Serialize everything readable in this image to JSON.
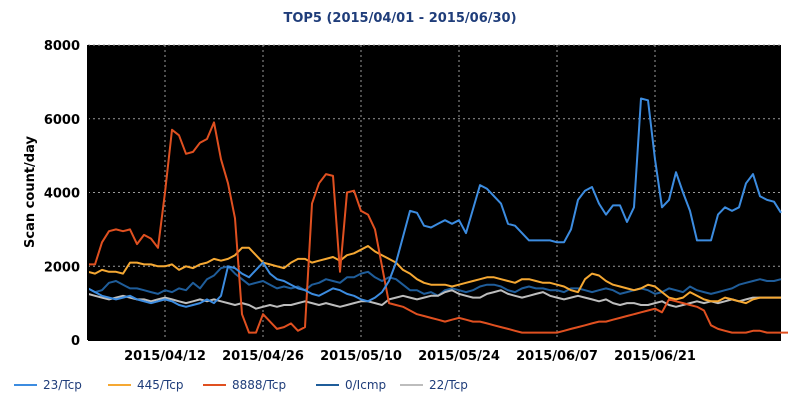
{
  "chart_data": {
    "type": "line",
    "title": "TOP5 (2015/04/01 - 2015/06/30)",
    "xlabel": "",
    "ylabel": "Scan count/day",
    "ylim": [
      0,
      8000
    ],
    "yticks": [
      "0",
      "2000",
      "4000",
      "6000",
      "8000"
    ],
    "xticks": [
      "2015/04/12",
      "2015/04/26",
      "2015/05/10",
      "2015/05/24",
      "2015/06/07",
      "2015/06/21"
    ],
    "x_start": "2015/04/01",
    "x_end": "2015/06/30",
    "background": "#000000",
    "grid": true,
    "legend_position": "bottom",
    "series": [
      {
        "name": "23/Tcp",
        "color": "#3c8ce0",
        "values": [
          1400,
          1300,
          1200,
          1150,
          1100,
          1150,
          1200,
          1100,
          1050,
          1000,
          1050,
          1100,
          1050,
          950,
          900,
          950,
          1000,
          1100,
          1000,
          1200,
          2000,
          1950,
          1800,
          1700,
          1900,
          2100,
          1800,
          1650,
          1600,
          1500,
          1400,
          1350,
          1250,
          1200,
          1300,
          1400,
          1350,
          1250,
          1200,
          1100,
          1050,
          1150,
          1300,
          1600,
          2100,
          2800,
          3500,
          3450,
          3100,
          3050,
          3150,
          3250,
          3150,
          3250,
          2900,
          3550,
          4200,
          4100,
          3900,
          3700,
          3150,
          3100,
          2900,
          2700,
          2700,
          2700,
          2700,
          2650,
          2650,
          3000,
          3800,
          4050,
          4150,
          3700,
          3400,
          3650,
          3650,
          3200,
          3600,
          6550,
          6500,
          4900,
          3600,
          3800,
          4550,
          4000,
          3500,
          2700,
          2700,
          2700,
          3400,
          3600,
          3500,
          3600,
          4250,
          4500,
          3900,
          3800,
          3750,
          3450
        ]
      },
      {
        "name": "445/Tcp",
        "color": "#f5a833",
        "values": [
          1850,
          1800,
          1900,
          1850,
          1850,
          1800,
          2100,
          2100,
          2050,
          2050,
          2000,
          2000,
          2050,
          1900,
          2000,
          1950,
          2050,
          2100,
          2200,
          2150,
          2200,
          2300,
          2500,
          2500,
          2300,
          2100,
          2050,
          2000,
          1950,
          2100,
          2200,
          2200,
          2100,
          2150,
          2200,
          2250,
          2150,
          2300,
          2350,
          2450,
          2550,
          2400,
          2300,
          2200,
          2100,
          1900,
          1800,
          1650,
          1550,
          1500,
          1500,
          1500,
          1450,
          1500,
          1550,
          1600,
          1650,
          1700,
          1700,
          1650,
          1600,
          1550,
          1650,
          1650,
          1600,
          1550,
          1550,
          1500,
          1450,
          1350,
          1300,
          1650,
          1800,
          1750,
          1600,
          1500,
          1450,
          1400,
          1350,
          1400,
          1500,
          1450,
          1300,
          1150,
          1100,
          1150,
          1300,
          1200,
          1100,
          1050,
          1050,
          1150,
          1100,
          1050,
          1000,
          1100,
          1150,
          1150,
          1150,
          1150
        ]
      },
      {
        "name": "8888/Tcp",
        "color": "#e05020",
        "values": [
          2050,
          2050,
          2650,
          2950,
          3000,
          2950,
          3000,
          2600,
          2850,
          2750,
          2500,
          4000,
          5700,
          5550,
          5050,
          5100,
          5350,
          5450,
          5900,
          4900,
          4250,
          3300,
          700,
          200,
          200,
          700,
          500,
          300,
          350,
          450,
          250,
          350,
          3700,
          4250,
          4500,
          4450,
          1850,
          4000,
          4050,
          3500,
          3400,
          3000,
          2000,
          1000,
          950,
          900,
          800,
          700,
          650,
          600,
          550,
          500,
          550,
          600,
          550,
          500,
          500,
          450,
          400,
          350,
          300,
          250,
          200,
          200,
          200,
          200,
          200,
          200,
          250,
          300,
          350,
          400,
          450,
          500,
          500,
          550,
          600,
          650,
          700,
          750,
          800,
          850,
          750,
          1100,
          1050,
          1000,
          950,
          900,
          800,
          400,
          300,
          250,
          200,
          200,
          200,
          250,
          250,
          200,
          200,
          200,
          200
        ]
      },
      {
        "name": "0/Icmp",
        "color": "#1f5d9a",
        "values": [
          1400,
          1300,
          1350,
          1550,
          1600,
          1500,
          1400,
          1400,
          1350,
          1300,
          1250,
          1350,
          1300,
          1400,
          1350,
          1550,
          1400,
          1650,
          1750,
          1950,
          2000,
          1800,
          1650,
          1500,
          1550,
          1600,
          1500,
          1400,
          1450,
          1400,
          1450,
          1350,
          1500,
          1550,
          1650,
          1600,
          1550,
          1700,
          1700,
          1800,
          1850,
          1700,
          1600,
          1700,
          1650,
          1500,
          1350,
          1350,
          1250,
          1300,
          1200,
          1350,
          1400,
          1350,
          1300,
          1350,
          1450,
          1500,
          1500,
          1450,
          1350,
          1300,
          1400,
          1450,
          1400,
          1400,
          1350,
          1350,
          1300,
          1400,
          1400,
          1350,
          1300,
          1350,
          1400,
          1350,
          1250,
          1300,
          1350,
          1400,
          1350,
          1250,
          1300,
          1400,
          1350,
          1300,
          1450,
          1350,
          1300,
          1250,
          1300,
          1350,
          1400,
          1500,
          1550,
          1600,
          1650,
          1600,
          1600,
          1650
        ]
      },
      {
        "name": "22/Tcp",
        "color": "#bdbdbd",
        "values": [
          1250,
          1200,
          1150,
          1100,
          1150,
          1200,
          1150,
          1100,
          1100,
          1050,
          1100,
          1150,
          1100,
          1050,
          1000,
          1050,
          1100,
          1050,
          1100,
          1050,
          1000,
          950,
          1000,
          950,
          850,
          900,
          950,
          900,
          950,
          950,
          1000,
          1050,
          1000,
          950,
          1000,
          950,
          900,
          950,
          1000,
          1050,
          1050,
          1000,
          950,
          1100,
          1150,
          1200,
          1150,
          1100,
          1150,
          1200,
          1200,
          1300,
          1350,
          1250,
          1200,
          1150,
          1150,
          1250,
          1300,
          1350,
          1250,
          1200,
          1150,
          1200,
          1250,
          1300,
          1200,
          1150,
          1100,
          1150,
          1200,
          1150,
          1100,
          1050,
          1100,
          1000,
          950,
          1000,
          1000,
          950,
          950,
          1000,
          1050,
          950,
          900,
          950,
          1000,
          1050,
          1000,
          1050,
          1000,
          1050,
          1100,
          1050,
          1100,
          1150,
          1150,
          1150,
          1150,
          1150
        ]
      }
    ]
  }
}
